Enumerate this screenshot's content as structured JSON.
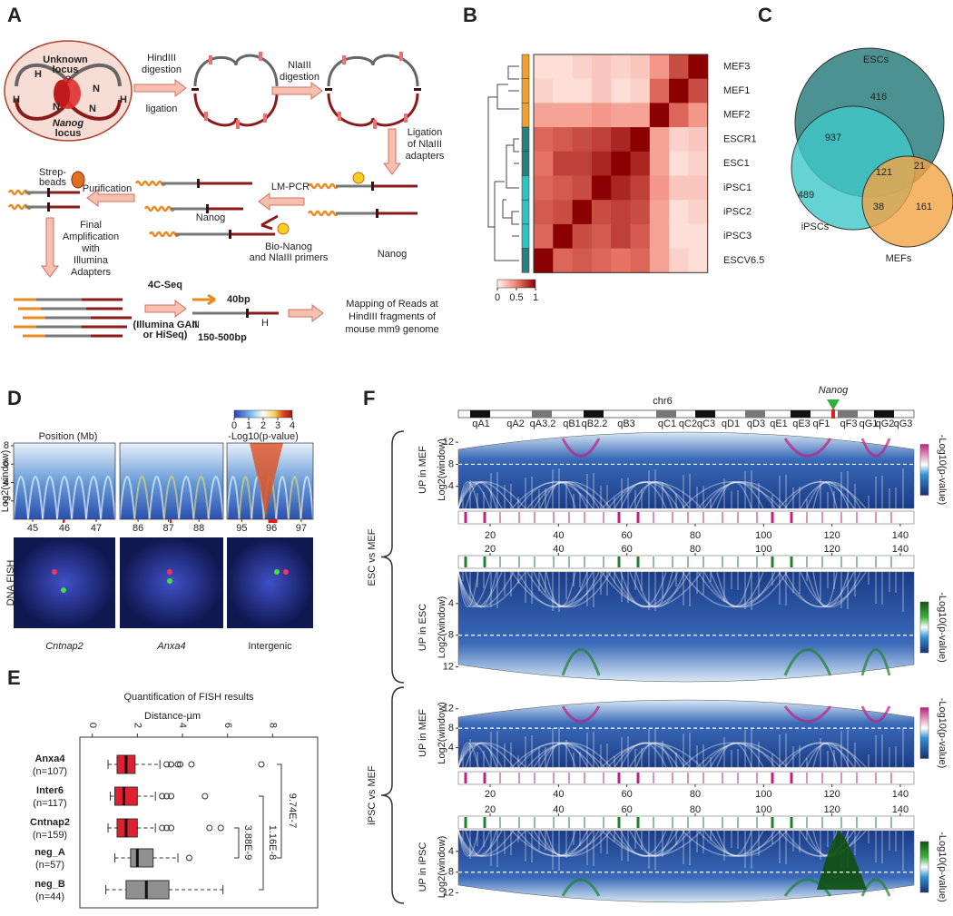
{
  "panel_letters": [
    "A",
    "B",
    "C",
    "D",
    "E",
    "F"
  ],
  "panel_a": {
    "unknown_locus": [
      "Unknown",
      "locus"
    ],
    "question": "?",
    "nanog_locus": [
      "Nanog",
      "locus"
    ],
    "hindiii_step": [
      "HindIII",
      "digestion"
    ],
    "ligation": "ligation",
    "nlaiii_step": [
      "NlaIII",
      "digestion"
    ],
    "adapter_step": [
      "Ligation",
      "of NlaIII",
      "adapters"
    ],
    "lm_pcr": "LM-PCR",
    "purification": "Purification",
    "strep_beads": [
      "Strep-",
      "beads"
    ],
    "nanog_1": "Nanog",
    "nanog_2": "Nanog",
    "primers": [
      "Bio-Nanog",
      "and NlaIII primers"
    ],
    "final_step": [
      "Final",
      "Amplification",
      "with",
      "Illumina",
      "Adapters"
    ],
    "seq": "4C-Seq",
    "platform": [
      "(Illumina GAII",
      "or HiSeq)"
    ],
    "read_length": "40bp",
    "fragment": "150-500bp",
    "mapping": [
      "Mapping of Reads at",
      "HindIII fragments of",
      "mouse mm9 genome"
    ],
    "site_h": "H",
    "site_n": "N"
  },
  "panel_b": {
    "row_labels": [
      {
        "text": "MEF3",
        "color": "#f0a030"
      },
      {
        "text": "MEF1",
        "color": "#f0a030"
      },
      {
        "text": "MEF2",
        "color": "#f0a030"
      },
      {
        "text": "ESCR1",
        "color": "#2a8080"
      },
      {
        "text": "ESC1",
        "color": "#2a8080"
      },
      {
        "text": "iPSC1",
        "color": "#33bfc4"
      },
      {
        "text": "iPSC2",
        "color": "#33bfc4"
      },
      {
        "text": "iPSC3",
        "color": "#33bfc4"
      },
      {
        "text": "ESCV6.5",
        "color": "#2a8080"
      }
    ],
    "matrix": [
      [
        0.1,
        0.1,
        0.15,
        0.2,
        0.15,
        0.2,
        0.4,
        0.7,
        1
      ],
      [
        0.15,
        0.1,
        0.1,
        0.2,
        0.1,
        0.15,
        0.6,
        1,
        0.7
      ],
      [
        0.35,
        0.35,
        0.35,
        0.4,
        0.35,
        0.35,
        1,
        0.6,
        0.4
      ],
      [
        0.6,
        0.65,
        0.7,
        0.75,
        0.85,
        1,
        0.35,
        0.15,
        0.2
      ],
      [
        0.55,
        0.75,
        0.75,
        0.85,
        1,
        0.85,
        0.35,
        0.1,
        0.15
      ],
      [
        0.6,
        0.65,
        0.7,
        1,
        0.85,
        0.75,
        0.4,
        0.2,
        0.2
      ],
      [
        0.65,
        0.7,
        1,
        0.7,
        0.75,
        0.7,
        0.35,
        0.1,
        0.15
      ],
      [
        0.6,
        1,
        0.7,
        0.65,
        0.75,
        0.65,
        0.35,
        0.1,
        0.1
      ],
      [
        1,
        0.6,
        0.65,
        0.6,
        0.55,
        0.6,
        0.35,
        0.15,
        0.1
      ]
    ],
    "scale_lim": [
      0,
      1
    ],
    "scale_ticks": [
      0,
      0.5,
      1
    ]
  },
  "panel_c": {
    "sets": [
      {
        "name": "ESCs",
        "color": "#2e7f7f"
      },
      {
        "name": "iPSCs",
        "color": "#3fc8c8"
      },
      {
        "name": "MEFs",
        "color": "#f2a444"
      }
    ],
    "counts": {
      "escs_only": 416,
      "escs_ipscs": 937,
      "ipscs_only": 489,
      "all_three": 121,
      "escs_mefs": 21,
      "ipscs_mefs": 38,
      "mefs_only": 161
    }
  },
  "panel_d": {
    "colorbar_label": "-Log10(p-value)",
    "colorbar_lim": [
      0,
      4
    ],
    "colorbar_ticks": [
      0,
      1,
      2,
      3,
      4
    ],
    "position_label": "Position (Mb)",
    "ylabel": "Log2(window)",
    "ylim": [
      0,
      8.3
    ],
    "yticks": [
      2,
      4,
      6,
      8
    ],
    "subplots": [
      {
        "xlim": [
          44.4,
          47.6
        ],
        "xticks": [
          45,
          46,
          47
        ]
      },
      {
        "xlim": [
          85.4,
          88.8
        ],
        "xticks": [
          86,
          87,
          88
        ]
      },
      {
        "xlim": [
          94.5,
          97.4
        ],
        "xticks": [
          95,
          96,
          97
        ]
      }
    ],
    "fish_label": "DNA FISH",
    "loci": [
      "Cntnap2",
      "Anxa4",
      "Intergenic"
    ]
  },
  "panel_e": {
    "title": "Quantification of FISH results",
    "xlabel": "Distance-µm",
    "xlim": [
      -0.55,
      10
    ],
    "xticks": [
      0,
      2,
      4,
      6,
      8
    ],
    "groups": [
      {
        "name": "Anxa4",
        "n_label": "(n=107)",
        "color": "#e02030",
        "whisker_low": 0.7,
        "q1": 1.1,
        "median": 1.5,
        "q3": 1.9,
        "whisker_high": 3.0,
        "outliers": [
          3.3,
          3.5,
          3.8,
          3.9,
          4.4,
          7.5
        ]
      },
      {
        "name": "Inter6",
        "n_label": "(n=117)",
        "color": "#e02030",
        "whisker_low": 0.8,
        "q1": 1.0,
        "median": 1.4,
        "q3": 2.0,
        "whisker_high": 2.8,
        "outliers": [
          3.1,
          3.3,
          3.5,
          5.0
        ]
      },
      {
        "name": "Cntnap2",
        "n_label": "(n=159)",
        "color": "#e02030",
        "whisker_low": 0.7,
        "q1": 1.1,
        "median": 1.5,
        "q3": 2.0,
        "whisker_high": 2.8,
        "outliers": [
          3.1,
          3.3,
          3.5,
          5.2,
          5.7
        ]
      },
      {
        "name": "neg_A",
        "n_label": "(n=57)",
        "color": "#909090",
        "whisker_low": 1.0,
        "q1": 1.7,
        "median": 2.0,
        "q3": 2.7,
        "whisker_high": 3.8,
        "outliers": [
          4.3
        ]
      },
      {
        "name": "neg_B",
        "n_label": "(n=44)",
        "color": "#909090",
        "whisker_low": 0.6,
        "q1": 1.5,
        "median": 2.4,
        "q3": 3.4,
        "whisker_high": 5.8,
        "outliers": []
      }
    ],
    "p_values": [
      "9.74E-7",
      "1.16E-8",
      "3.88E-9"
    ]
  },
  "panel_f": {
    "chromosome": "chr6",
    "marker": "Nanog",
    "bands": [
      "qA1",
      "qA2",
      "qA3.2",
      "qB1",
      "qB2.2",
      "qB3",
      "qC1",
      "qC2",
      "qC3",
      "qD1",
      "qD3",
      "qE1",
      "qE3",
      "qF1",
      "qF3",
      "qG1",
      "qG2",
      "qG3"
    ],
    "comparisons": [
      "ESC vs MEF",
      "iPSC vs MEF"
    ],
    "panel_titles": [
      "UP in MEF",
      "UP in ESC",
      "UP in MEF",
      "UP in iPSC"
    ],
    "ylabel": "Log2(window)",
    "colorbar_label": "-Log10(p-value)",
    "xlim": [
      10.7,
      144
    ],
    "xticks": [
      20,
      40,
      60,
      80,
      100,
      120,
      140
    ],
    "ylim": [
      0,
      14
    ],
    "yticks": [
      4,
      8,
      12
    ]
  }
}
